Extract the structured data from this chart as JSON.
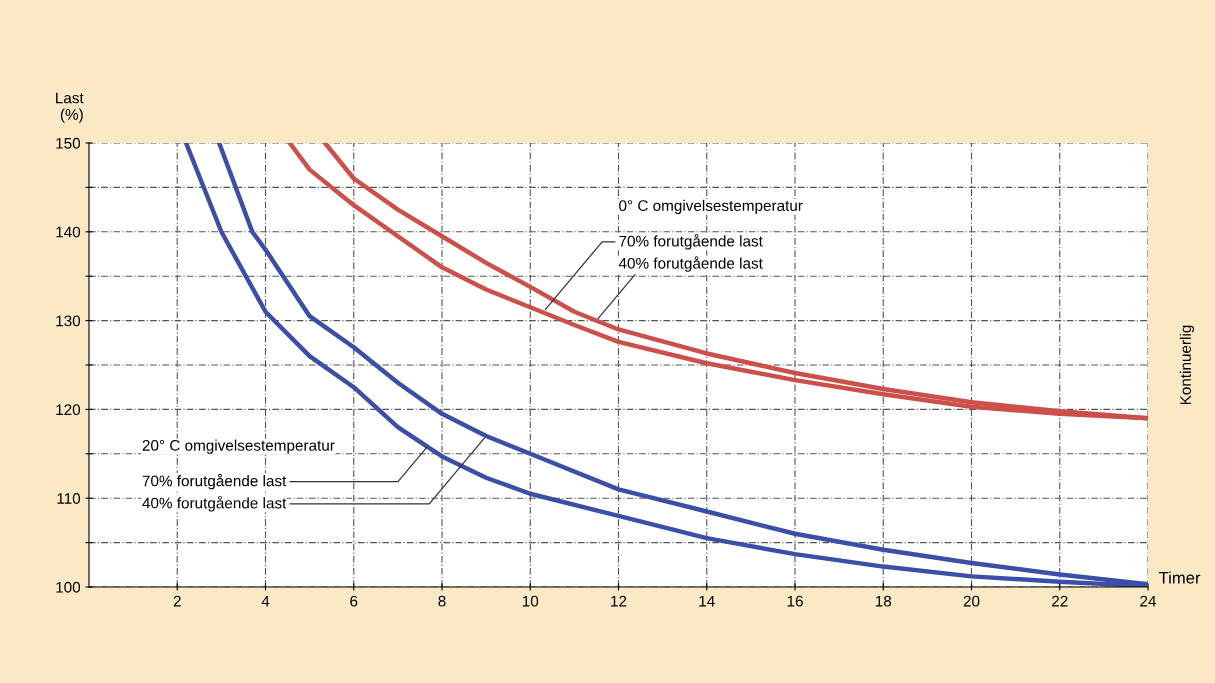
{
  "chart_data": {
    "type": "line",
    "xlabel": "Timer",
    "ylabel": "Last\n(%)",
    "xlim": [
      0,
      24
    ],
    "ylim": [
      100,
      150
    ],
    "xticks": [
      2,
      4,
      6,
      8,
      10,
      12,
      14,
      16,
      18,
      20,
      22,
      24
    ],
    "yticks": [
      100,
      {
        "value": 105,
        "label": null
      },
      110,
      {
        "value": 115,
        "label": null
      },
      120,
      {
        "value": 125,
        "label": null
      },
      130,
      {
        "value": 135,
        "label": null
      },
      140,
      {
        "value": 145,
        "label": null
      },
      150
    ],
    "grid": true,
    "marker": "none",
    "line_style": "solid",
    "legend": false,
    "series": [
      {
        "color": "#3b4ea8",
        "x": [
          2.95,
          3.7,
          4,
          5,
          6,
          7,
          8,
          9,
          10,
          12,
          14,
          16,
          18,
          20,
          22,
          24
        ],
        "values": [
          150,
          140,
          138,
          130.5,
          127,
          123,
          119.5,
          117,
          115,
          111,
          108.5,
          106,
          104.2,
          102.7,
          101.4,
          100.3
        ]
      },
      {
        "color": "#3b4ea8",
        "x": [
          2.2,
          3,
          4,
          5,
          6,
          7,
          8,
          9,
          10,
          12,
          14,
          16,
          18,
          20,
          22,
          24
        ],
        "values": [
          150,
          140,
          131,
          126,
          122.5,
          118,
          114.7,
          112.3,
          110.5,
          108,
          105.5,
          103.7,
          102.3,
          101.2,
          100.6,
          100.1
        ]
      },
      {
        "color": "#cc4f4a",
        "x": [
          5.35,
          6,
          7,
          8,
          9,
          10,
          11,
          12,
          14,
          16,
          18,
          20,
          22,
          24
        ],
        "values": [
          150,
          146,
          142.5,
          139.5,
          136.5,
          133.8,
          131,
          129,
          126.3,
          124.1,
          122.3,
          120.8,
          119.8,
          119
        ]
      },
      {
        "color": "#cc4f4a",
        "x": [
          4.55,
          5,
          6,
          7,
          8,
          9,
          10,
          11,
          12,
          14,
          16,
          18,
          20,
          22,
          24
        ],
        "values": [
          150,
          147,
          143,
          139.5,
          136,
          133.5,
          131.5,
          129.5,
          127.6,
          125.2,
          123.3,
          121.7,
          120.3,
          119.5,
          119
        ]
      }
    ],
    "annotations": [
      {
        "text": "20° C omgivelsestemperatur"
      },
      {
        "text": "70% forutgående last",
        "x": 7.7,
        "y": 116
      },
      {
        "text": "40% forutgående last",
        "x": 9,
        "y": 117
      },
      {
        "text": "0° C omgivelsestemperatur"
      },
      {
        "text": "70% forutgående last",
        "x": 10.3,
        "y": 131
      },
      {
        "text": "40% forutgående last",
        "x": 11.5,
        "y": 130
      },
      "Kontinuerlig"
    ]
  }
}
